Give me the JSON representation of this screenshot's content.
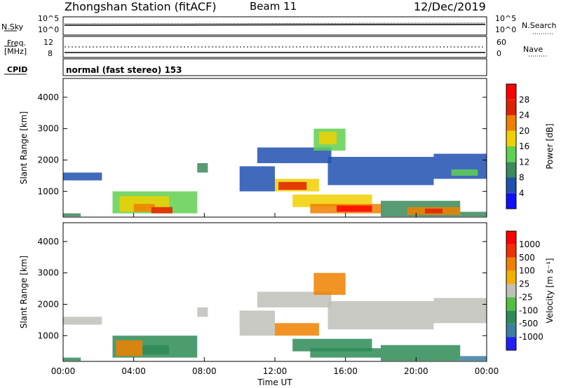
{
  "header": {
    "station": "Zhongshan Station (fitACF)",
    "beam": "Beam 11",
    "date": "12/Dec/2019"
  },
  "top_panels": {
    "nsky_label": "N.Sky",
    "nsky_ticks": [
      "10^5",
      "10^0"
    ],
    "nsearch_label": "N.Search",
    "nsearch_ticks": [
      "10^5",
      "10^0"
    ],
    "freq_label_1": "Freq.",
    "freq_label_2": "[MHz]",
    "freq_ticks": [
      "12",
      "8"
    ],
    "nave_label": "Nave",
    "nave_ticks": [
      "60",
      "0"
    ],
    "cpid_label": "CPID",
    "cpid_text": "normal (fast stereo) 153"
  },
  "colors": {
    "power": [
      "#1010ff",
      "#2050b0",
      "#3a8a5a",
      "#60d050",
      "#f0d000",
      "#f08000",
      "#e02000",
      "#ff0000"
    ],
    "velocity": [
      "#ff0000",
      "#f03000",
      "#f08000",
      "#f0b000",
      "#c0c0b8",
      "#50c040",
      "#2e8b57",
      "#3a7fa0",
      "#2020ff"
    ]
  },
  "chart_data": [
    {
      "type": "heatmap",
      "name": "power",
      "ylabel": "Slant Range [km]",
      "xlabel": "",
      "xlim": [
        0,
        24
      ],
      "ylim": [
        180,
        4600
      ],
      "yticks": [
        "1000",
        "2000",
        "3000",
        "4000"
      ],
      "xticks": [
        "00:00",
        "04:00",
        "08:00",
        "12:00",
        "16:00",
        "20:00",
        "00:00"
      ],
      "colorbar_label": "Power [dB]",
      "colorbar_ticks": [
        "4",
        "8",
        "12",
        "16",
        "20",
        "24",
        "28"
      ],
      "regions": [
        {
          "t0": 0.0,
          "t1": 2.2,
          "r0": 1350,
          "r1": 1600,
          "level": 1
        },
        {
          "t0": 0.0,
          "t1": 1.0,
          "r0": 200,
          "r1": 300,
          "level": 2
        },
        {
          "t0": 2.8,
          "t1": 7.6,
          "r0": 300,
          "r1": 1000,
          "level": 3
        },
        {
          "t0": 3.2,
          "t1": 6.0,
          "r0": 350,
          "r1": 850,
          "level": 4
        },
        {
          "t0": 4.0,
          "t1": 5.2,
          "r0": 350,
          "r1": 600,
          "level": 5
        },
        {
          "t0": 5.0,
          "t1": 6.2,
          "r0": 300,
          "r1": 500,
          "level": 6
        },
        {
          "t0": 7.6,
          "t1": 8.2,
          "r0": 1600,
          "r1": 1900,
          "level": 2
        },
        {
          "t0": 10.0,
          "t1": 12.0,
          "r0": 1000,
          "r1": 1800,
          "level": 1
        },
        {
          "t0": 11.0,
          "t1": 15.2,
          "r0": 1900,
          "r1": 2400,
          "level": 1
        },
        {
          "t0": 12.0,
          "t1": 14.5,
          "r0": 1000,
          "r1": 1400,
          "level": 4
        },
        {
          "t0": 12.2,
          "t1": 13.8,
          "r0": 1050,
          "r1": 1300,
          "level": 6
        },
        {
          "t0": 13.0,
          "t1": 17.5,
          "r0": 500,
          "r1": 900,
          "level": 4
        },
        {
          "t0": 14.0,
          "t1": 18.0,
          "r0": 300,
          "r1": 600,
          "level": 5
        },
        {
          "t0": 15.5,
          "t1": 17.5,
          "r0": 350,
          "r1": 550,
          "level": 7
        },
        {
          "t0": 14.2,
          "t1": 16.0,
          "r0": 2300,
          "r1": 3000,
          "level": 3
        },
        {
          "t0": 14.5,
          "t1": 15.5,
          "r0": 2500,
          "r1": 2900,
          "level": 4
        },
        {
          "t0": 15.0,
          "t1": 21.0,
          "r0": 1200,
          "r1": 2100,
          "level": 1
        },
        {
          "t0": 18.0,
          "t1": 22.5,
          "r0": 200,
          "r1": 700,
          "level": 2
        },
        {
          "t0": 19.5,
          "t1": 22.5,
          "r0": 250,
          "r1": 500,
          "level": 5
        },
        {
          "t0": 20.5,
          "t1": 21.5,
          "r0": 300,
          "r1": 450,
          "level": 6
        },
        {
          "t0": 21.0,
          "t1": 24.0,
          "r0": 1400,
          "r1": 2200,
          "level": 1
        },
        {
          "t0": 22.0,
          "t1": 23.5,
          "r0": 1500,
          "r1": 1700,
          "level": 3
        },
        {
          "t0": 22.5,
          "t1": 24.0,
          "r0": 200,
          "r1": 350,
          "level": 2
        }
      ]
    },
    {
      "type": "heatmap",
      "name": "velocity",
      "ylabel": "Slant Range [km]",
      "xlabel": "Time UT",
      "xlim": [
        0,
        24
      ],
      "ylim": [
        180,
        4600
      ],
      "yticks": [
        "1000",
        "2000",
        "3000",
        "4000"
      ],
      "xticks": [
        "00:00",
        "04:00",
        "08:00",
        "12:00",
        "16:00",
        "20:00",
        "00:00"
      ],
      "colorbar_label": "Velocity [m s⁻¹]",
      "colorbar_ticks": [
        "1000",
        "500",
        "100",
        "25",
        "-25",
        "-100",
        "-500",
        "-1000"
      ],
      "regions": [
        {
          "t0": 0.0,
          "t1": 2.2,
          "r0": 1350,
          "r1": 1600,
          "level": 4
        },
        {
          "t0": 0.0,
          "t1": 1.0,
          "r0": 200,
          "r1": 300,
          "level": 6
        },
        {
          "t0": 2.8,
          "t1": 7.6,
          "r0": 300,
          "r1": 1000,
          "level": 6
        },
        {
          "t0": 3.0,
          "t1": 4.5,
          "r0": 350,
          "r1": 850,
          "level": 2
        },
        {
          "t0": 4.5,
          "t1": 6.0,
          "r0": 400,
          "r1": 700,
          "level": 6
        },
        {
          "t0": 7.6,
          "t1": 8.2,
          "r0": 1600,
          "r1": 1900,
          "level": 4
        },
        {
          "t0": 10.0,
          "t1": 12.0,
          "r0": 1000,
          "r1": 1800,
          "level": 4
        },
        {
          "t0": 11.0,
          "t1": 15.2,
          "r0": 1900,
          "r1": 2400,
          "level": 4
        },
        {
          "t0": 12.0,
          "t1": 14.5,
          "r0": 1000,
          "r1": 1400,
          "level": 2
        },
        {
          "t0": 13.0,
          "t1": 17.5,
          "r0": 500,
          "r1": 900,
          "level": 6
        },
        {
          "t0": 14.0,
          "t1": 18.0,
          "r0": 300,
          "r1": 600,
          "level": 6
        },
        {
          "t0": 14.2,
          "t1": 16.0,
          "r0": 2300,
          "r1": 3000,
          "level": 2
        },
        {
          "t0": 15.0,
          "t1": 21.0,
          "r0": 1200,
          "r1": 2100,
          "level": 4
        },
        {
          "t0": 18.0,
          "t1": 22.5,
          "r0": 200,
          "r1": 700,
          "level": 6
        },
        {
          "t0": 21.0,
          "t1": 24.0,
          "r0": 1400,
          "r1": 2200,
          "level": 4
        },
        {
          "t0": 22.5,
          "t1": 24.0,
          "r0": 200,
          "r1": 350,
          "level": 7
        }
      ]
    }
  ]
}
